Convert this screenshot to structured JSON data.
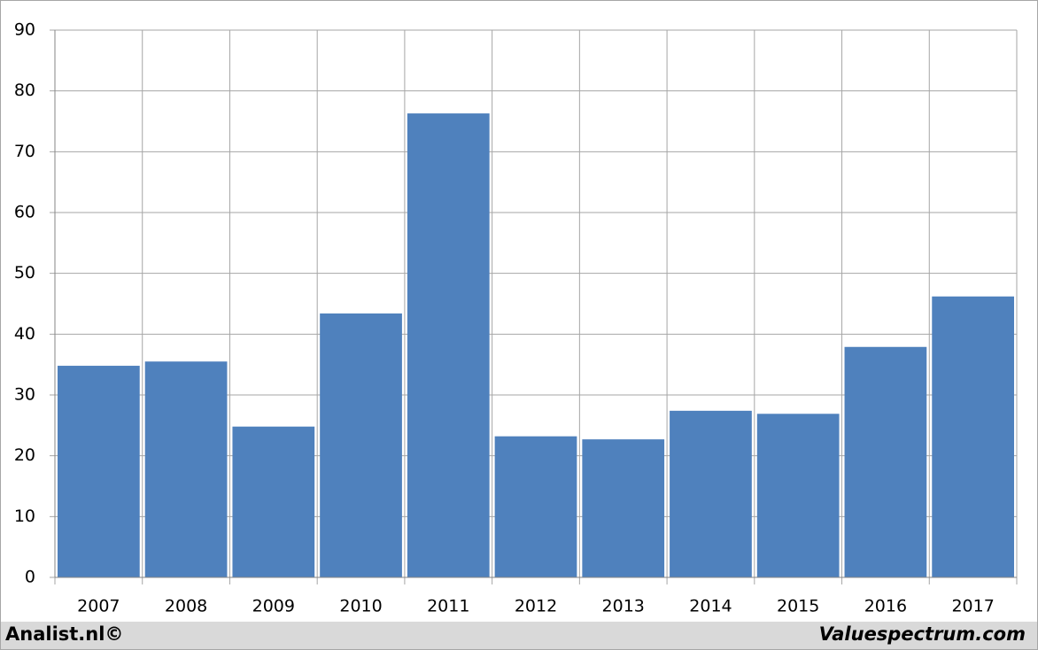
{
  "chart_data": {
    "type": "bar",
    "categories": [
      "2007",
      "2008",
      "2009",
      "2010",
      "2011",
      "2012",
      "2013",
      "2014",
      "2015",
      "2016",
      "2017"
    ],
    "values": [
      34.8,
      35.5,
      24.8,
      43.4,
      76.3,
      23.2,
      22.7,
      27.4,
      26.9,
      37.9,
      46.2
    ],
    "color": "#4f81bd",
    "ylim": [
      0,
      90
    ],
    "yticks": [
      0,
      10,
      20,
      30,
      40,
      50,
      60,
      70,
      80,
      90
    ],
    "grid": true
  },
  "footer": {
    "left": "Analist.nl©",
    "right": "Valuespectrum.com"
  }
}
